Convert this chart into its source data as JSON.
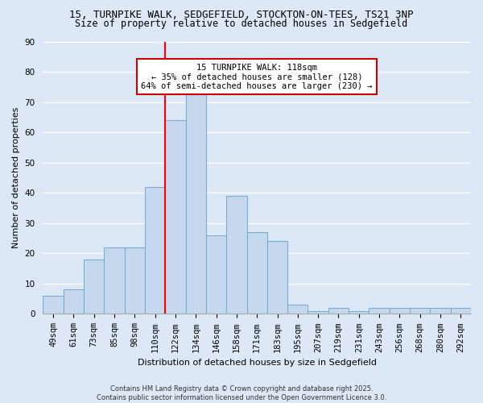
{
  "title1": "15, TURNPIKE WALK, SEDGEFIELD, STOCKTON-ON-TEES, TS21 3NP",
  "title2": "Size of property relative to detached houses in Sedgefield",
  "xlabel": "Distribution of detached houses by size in Sedgefield",
  "ylabel": "Number of detached properties",
  "categories": [
    "49sqm",
    "61sqm",
    "73sqm",
    "85sqm",
    "98sqm",
    "110sqm",
    "122sqm",
    "134sqm",
    "146sqm",
    "158sqm",
    "171sqm",
    "183sqm",
    "195sqm",
    "207sqm",
    "219sqm",
    "231sqm",
    "243sqm",
    "256sqm",
    "268sqm",
    "280sqm",
    "292sqm"
  ],
  "values": [
    6,
    8,
    18,
    22,
    22,
    42,
    64,
    73,
    26,
    39,
    27,
    24,
    3,
    1,
    2,
    1,
    2,
    2,
    2,
    2,
    2
  ],
  "bar_color": "#c5d8ee",
  "bar_edge_color": "#7aadd4",
  "red_line_index": 5.5,
  "red_line_label": "15 TURNPIKE WALK: 118sqm",
  "annotation_line2": "← 35% of detached houses are smaller (128)",
  "annotation_line3": "64% of semi-detached houses are larger (230) →",
  "footer1": "Contains HM Land Registry data © Crown copyright and database right 2025.",
  "footer2": "Contains public sector information licensed under the Open Government Licence 3.0.",
  "ylim": [
    0,
    90
  ],
  "yticks": [
    0,
    10,
    20,
    30,
    40,
    50,
    60,
    70,
    80,
    90
  ],
  "background_color": "#dce8f5",
  "plot_bg_color": "#dce8f5",
  "grid_color": "#ffffff",
  "title1_fontsize": 9,
  "title2_fontsize": 8.5,
  "xlabel_fontsize": 8,
  "ylabel_fontsize": 8,
  "tick_fontsize": 7.5,
  "annot_fontsize": 7.5,
  "footer_fontsize": 6
}
